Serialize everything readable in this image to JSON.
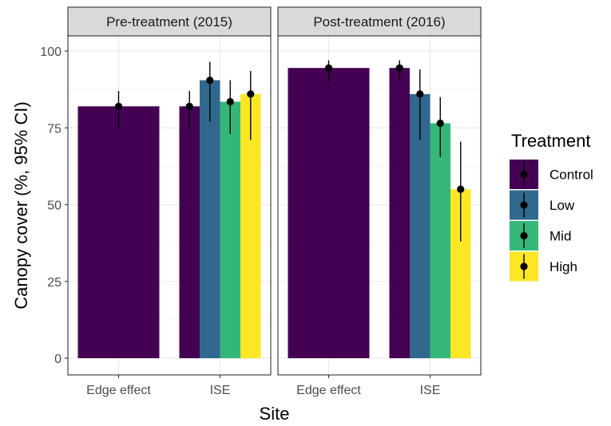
{
  "chart_data": {
    "type": "bar",
    "xlabel": "Site",
    "ylabel": "Canopy cover (%, 95% CI)",
    "ylim": [
      0,
      100
    ],
    "yticks": [
      0,
      25,
      50,
      75,
      100
    ],
    "legend": {
      "title": "Treatment",
      "position": "right",
      "entries": [
        {
          "name": "Control",
          "color": "#440154"
        },
        {
          "name": "Low",
          "color": "#31688E"
        },
        {
          "name": "Mid",
          "color": "#35B779"
        },
        {
          "name": "High",
          "color": "#FDE725"
        }
      ]
    },
    "panels": [
      {
        "title": "Pre-treatment (2015)",
        "categories": [
          {
            "label": "Edge effect",
            "bars": [
              {
                "treatment": "Control",
                "value": 82,
                "ci": [
                  75,
                  87
                ]
              }
            ]
          },
          {
            "label": "ISE",
            "bars": [
              {
                "treatment": "Control",
                "value": 82,
                "ci": [
                  75,
                  87
                ]
              },
              {
                "treatment": "Low",
                "value": 90.5,
                "ci": [
                  77,
                  96.5
                ]
              },
              {
                "treatment": "Mid",
                "value": 83.5,
                "ci": [
                  73,
                  90.5
                ]
              },
              {
                "treatment": "High",
                "value": 86,
                "ci": [
                  71,
                  93.5
                ]
              }
            ]
          }
        ]
      },
      {
        "title": "Post-treatment (2016)",
        "categories": [
          {
            "label": "Edge effect",
            "bars": [
              {
                "treatment": "Control",
                "value": 94.5,
                "ci": [
                  90,
                  97
                ]
              }
            ]
          },
          {
            "label": "ISE",
            "bars": [
              {
                "treatment": "Control",
                "value": 94.5,
                "ci": [
                  90.5,
                  97
                ]
              },
              {
                "treatment": "Low",
                "value": 86,
                "ci": [
                  71,
                  94
                ]
              },
              {
                "treatment": "Mid",
                "value": 76.5,
                "ci": [
                  65.5,
                  85
                ]
              },
              {
                "treatment": "High",
                "value": 55,
                "ci": [
                  38,
                  70.5
                ]
              }
            ]
          }
        ]
      }
    ]
  }
}
